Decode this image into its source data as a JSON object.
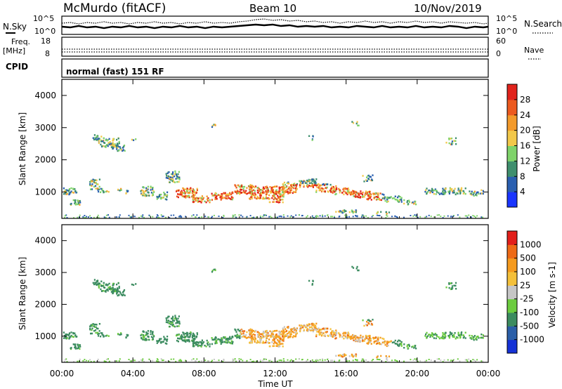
{
  "header": {
    "station": "McMurdo (fitACF)",
    "beam": "Beam 10",
    "date": "10/Nov/2019"
  },
  "noise_panel": {
    "left_label": "N.Sky",
    "right_label": "N.Search",
    "left_ticks": [
      "10^5",
      "10^0"
    ],
    "right_ticks": [
      "10^5",
      "10^0"
    ]
  },
  "freq_panel": {
    "left_label_1": "Freq.",
    "left_label_2": "[MHz]",
    "left_ticks": [
      "18",
      "8"
    ],
    "right_ticks": [
      "60",
      "0"
    ],
    "right_label": "Nave"
  },
  "cpid_panel": {
    "label": "CPID",
    "text": "normal (fast) 151 RF"
  },
  "chart_data": [
    {
      "type": "heatmap",
      "quantity": "Power",
      "ylabel": "Slant Range [km]",
      "colorbar_label": "Power [dB]",
      "yticks": [
        "1000",
        "2000",
        "3000",
        "4000"
      ],
      "xticks": [
        "00:00",
        "04:00",
        "08:00",
        "12:00",
        "16:00",
        "20:00",
        "00:00"
      ],
      "xlim": [
        0,
        24
      ],
      "ylim": [
        180,
        4500
      ],
      "colorbar_ticks": [
        "4",
        "8",
        "12",
        "16",
        "20",
        "24",
        "28"
      ],
      "colorbar_colors": [
        "#1a35ff",
        "#2a5fb0",
        "#3f8f6e",
        "#7fd36a",
        "#f2c84a",
        "#f39a2b",
        "#ec5a1f",
        "#e1231c"
      ]
    },
    {
      "type": "heatmap",
      "quantity": "Velocity",
      "ylabel": "Slant Range [km]",
      "colorbar_label": "Velocity [m s-1]",
      "yticks": [
        "1000",
        "2000",
        "3000",
        "4000"
      ],
      "xticks": [
        "00:00",
        "04:00",
        "08:00",
        "12:00",
        "16:00",
        "20:00",
        "00:00"
      ],
      "xlabel": "Time UT",
      "xlim": [
        0,
        24
      ],
      "ylim": [
        180,
        4500
      ],
      "colorbar_ticks": [
        "1000",
        "500",
        "100",
        "25",
        "-25",
        "-100",
        "-500",
        "-1000"
      ],
      "colorbar_colors": [
        "#1532d6",
        "#2b5fa8",
        "#3c8c60",
        "#6ccc3f",
        "#c6c6c6",
        "#f4c03a",
        "#f59a1e",
        "#ee6a16",
        "#e21f1b"
      ]
    }
  ]
}
